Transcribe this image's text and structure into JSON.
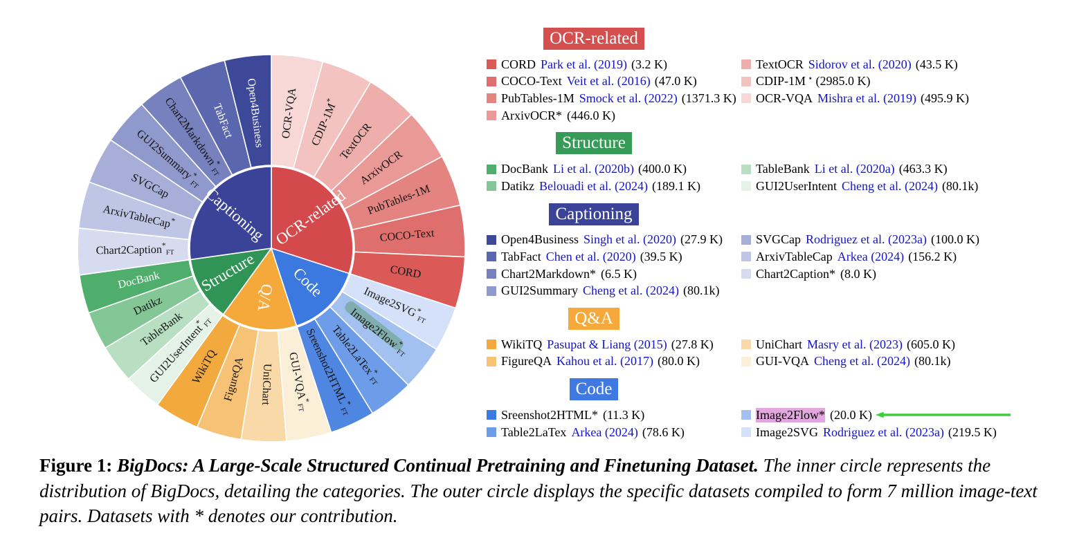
{
  "colors": {
    "link_blue": "#1414C8",
    "arrow_green": "#3BCD3B",
    "image2flow_highlight_pink": "#E2A7DE",
    "image2flow_wheel_highlight_green": "#69A183"
  },
  "chart_data": {
    "type": "sunburst",
    "title": "",
    "layout": {
      "inner_radius": 118,
      "ring_inner": 120,
      "ring_outer": 280,
      "angles_clockwise_from_top": true
    },
    "categories": [
      {
        "name": "OCR-related",
        "label": "OCR-related",
        "color": "#D4494C",
        "start": 0,
        "end": 108,
        "children": [
          {
            "label": "OCR-VQA",
            "color": "#F7D8D6",
            "value_k": 495.9
          },
          {
            "label": "CDIP-1M",
            "star": true,
            "color": "#F2C3C1",
            "value_k": 2985.0
          },
          {
            "label": "TextOCR",
            "color": "#EEAEAC",
            "value_k": 43.5
          },
          {
            "label": "ArxivOCR",
            "color": "#E99996",
            "value_k": 446.0
          },
          {
            "label": "PubTables-1M",
            "color": "#E48481",
            "value_k": 1371.3
          },
          {
            "label": "COCO-Text",
            "color": "#DF6F6C",
            "value_k": 47.0
          },
          {
            "label": "CORD",
            "color": "#DB5A57",
            "value_k": 3.2
          }
        ]
      },
      {
        "name": "Code",
        "label": "Code",
        "color": "#3B78DF",
        "start": 108,
        "end": 162,
        "children": [
          {
            "label": "Image2SVG",
            "star": true,
            "ft": true,
            "color": "#D4E1F8",
            "value_k": 219.5
          },
          {
            "label": "Image2Flow",
            "star": true,
            "ft": true,
            "color": "#A3C1F0",
            "value_k": 20.0,
            "highlight": "#69A183"
          },
          {
            "label": "Table2LaTex",
            "star": true,
            "ft": true,
            "color": "#6D9CE8",
            "value_k": 78.6
          },
          {
            "label": "Sreenshot2HTML",
            "star": true,
            "ft": true,
            "color": "#4E86E2",
            "value_k": 11.3
          }
        ]
      },
      {
        "name": "Q/A",
        "label": "Q/A",
        "color": "#F5A93B",
        "start": 162,
        "end": 216,
        "children": [
          {
            "label": "GUI-VQA",
            "star": true,
            "ft": true,
            "color": "#FCEFD8",
            "value_k": 80.1
          },
          {
            "label": "UniChart",
            "color": "#F9D9A7",
            "value_k": 605.0
          },
          {
            "label": "FigureQA",
            "color": "#F6C376",
            "value_k": 80.0
          },
          {
            "label": "WikiTQ",
            "color": "#F2A93E",
            "value_k": 27.8
          }
        ]
      },
      {
        "name": "Structure",
        "label": "Structure",
        "color": "#2F9455",
        "start": 216,
        "end": 262,
        "children": [
          {
            "label": "GUI2UserIntent",
            "star": true,
            "ft": true,
            "color": "#E4F2E7",
            "value_k": 80.1
          },
          {
            "label": "TableBank",
            "color": "#B9DFC2",
            "value_k": 463.3
          },
          {
            "label": "Datikz",
            "color": "#84C796",
            "value_k": 189.1
          },
          {
            "label": "DocBank",
            "color": "#4FAE6B",
            "white": true,
            "value_k": 400.0
          }
        ]
      },
      {
        "name": "Captioning",
        "label": "Captioning",
        "color": "#3A4397",
        "start": 262,
        "end": 360,
        "children": [
          {
            "label": "Chart2Caption",
            "star": true,
            "ft": true,
            "color": "#D7DBF0",
            "value_k": 8.0
          },
          {
            "label": "ArxivTableCap",
            "star": true,
            "color": "#BFC5E5",
            "value_k": 156.2
          },
          {
            "label": "SVGCap",
            "color": "#A7AFD9",
            "value_k": 100.0
          },
          {
            "label": "GUI2Summary",
            "star": true,
            "ft": true,
            "color": "#8F99CC",
            "value_k": 80.1
          },
          {
            "label": "Chart2Markdown",
            "star": true,
            "ft": true,
            "color": "#7681BE",
            "value_k": 6.5
          },
          {
            "label": "TabFact",
            "color": "#5A66AD",
            "white": true,
            "value_k": 39.5
          },
          {
            "label": "Open4Business",
            "color": "#3D4899",
            "white": true,
            "value_k": 27.9
          }
        ]
      }
    ]
  },
  "legend": {
    "sections": [
      {
        "title": "OCR-related",
        "color": "#D4504E",
        "col1": [
          {
            "name": "CORD",
            "swatch": "#DB5A57",
            "cite": "Park et al. (2019)",
            "count": "(3.2 K)"
          },
          {
            "name": "COCO-Text",
            "swatch": "#DF6F6C",
            "cite": "Veit et al. (2016)",
            "count": "(47.0 K)"
          },
          {
            "name": "PubTables-1M",
            "swatch": "#E48481",
            "cite": "Smock et al. (2022)",
            "count": "(1371.3 K)"
          },
          {
            "name": "ArxivOCR*",
            "swatch": "#E99996",
            "count": "(446.0 K)"
          }
        ],
        "col2": [
          {
            "name": "TextOCR",
            "swatch": "#EEAEAC",
            "cite": "Sidorov et al. (2020)",
            "count": "(43.5 K)"
          },
          {
            "name": "CDIP-1M",
            "sup": "⋆",
            "swatch": "#F2C3C1",
            "count": "(2985.0 K)"
          },
          {
            "name": "OCR-VQA",
            "swatch": "#F7D8D6",
            "cite": "Mishra et al. (2019)",
            "count": "(495.9 K)"
          }
        ]
      },
      {
        "title": "Structure",
        "color": "#379B58",
        "col1": [
          {
            "name": "DocBank",
            "swatch": "#4FAE6B",
            "cite": "Li et al. (2020b)",
            "count": "(400.0 K)"
          },
          {
            "name": "Datikz",
            "swatch": "#84C796",
            "cite": "Belouadi et al. (2024)",
            "count": "(189.1 K)"
          }
        ],
        "col2": [
          {
            "name": "TableBank",
            "swatch": "#B9DFC2",
            "cite": "Li et al. (2020a)",
            "count": "(463.3 K)"
          },
          {
            "name": "GUI2UserIntent",
            "swatch": "#E4F2E7",
            "cite": "Cheng et al. (2024)",
            "count": "(80.1k)"
          }
        ]
      },
      {
        "title": "Captioning",
        "color": "#3A4398",
        "col1": [
          {
            "name": "Open4Business",
            "swatch": "#3D4899",
            "cite": "Singh et al. (2020)",
            "count": "(27.9 K)"
          },
          {
            "name": "TabFact",
            "swatch": "#5A66AD",
            "cite": "Chen et al. (2020)",
            "count": "(39.5 K)"
          },
          {
            "name": "Chart2Markdown*",
            "swatch": "#7681BE",
            "count": "(6.5 K)"
          },
          {
            "name": "GUI2Summary",
            "swatch": "#8F99CC",
            "cite": "Cheng et al. (2024)",
            "count": "(80.1k)"
          }
        ],
        "col2": [
          {
            "name": "SVGCap",
            "swatch": "#A7AFD9",
            "cite": "Rodriguez et al. (2023a)",
            "count": "(100.0 K)"
          },
          {
            "name": "ArxivTableCap",
            "swatch": "#BFC5E5",
            "cite": "Arkea (2024)",
            "count": "(156.2 K)"
          },
          {
            "name": "Chart2Caption*",
            "swatch": "#D7DBF0",
            "count": "(8.0 K)"
          }
        ]
      },
      {
        "title": "Q&A",
        "color": "#F5A93B",
        "col1": [
          {
            "name": "WikiTQ",
            "swatch": "#F2A93E",
            "cite": "Pasupat & Liang (2015)",
            "count": "(27.8 K)"
          },
          {
            "name": "FigureQA",
            "swatch": "#F6C376",
            "cite": "Kahou et al. (2017)",
            "count": "(80.0 K)"
          }
        ],
        "col2": [
          {
            "name": "UniChart",
            "swatch": "#F9D9A7",
            "cite": "Masry et al. (2023)",
            "count": "(605.0 K)"
          },
          {
            "name": "GUI-VQA",
            "swatch": "#FCEFD8",
            "cite": "Cheng et al. (2024)",
            "count": "(80.1k)"
          }
        ]
      },
      {
        "title": "Code",
        "color": "#4079E2",
        "col1": [
          {
            "name": "Sreenshot2HTML*",
            "swatch": "#3D7BE0",
            "count": "(11.3 K)"
          },
          {
            "name": "Table2LaTex",
            "swatch": "#6D9CE8",
            "cite": "Arkea (2024)",
            "count": "(78.6 K)"
          }
        ],
        "col2": [
          {
            "name": "Image2Flow*",
            "swatch": "#A3C1F0",
            "highlight": "#E2A7DE",
            "count": "(20.0 K)"
          },
          {
            "name": "Image2SVG",
            "swatch": "#D4E1F8",
            "cite": "Rodriguez et al. (2023a)",
            "count": "(219.5 K)"
          }
        ]
      }
    ]
  },
  "caption": {
    "label": "Figure 1: ",
    "title": "BigDocs: A Large-Scale Structured Continual Pretraining and Finetuning Dataset. ",
    "body": "The inner circle represents the distribution of BigDocs, detailing the categories. The outer circle displays the specific datasets compiled to form 7 million image-text pairs. Datasets with * denotes our contribution."
  }
}
